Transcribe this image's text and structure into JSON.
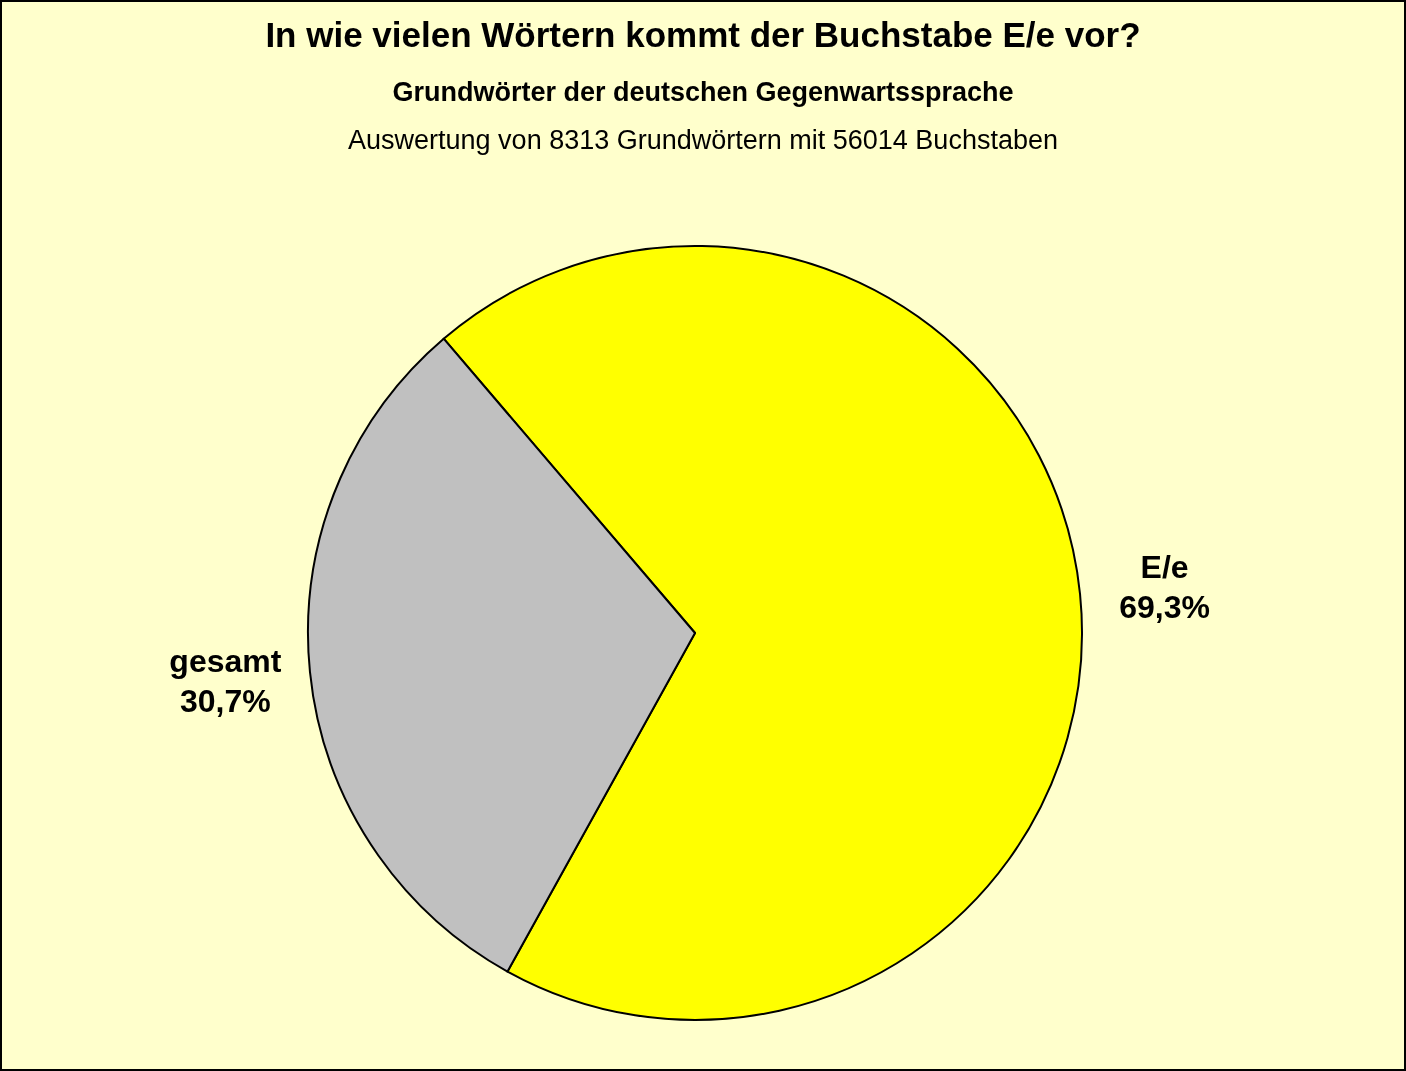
{
  "chart_data": {
    "type": "pie",
    "title": "In wie vielen Wörtern kommt der Buchstabe E/e vor?",
    "subtitle": "Grundwörter der deutschen Gegenwartssprache",
    "annotations": [
      "Auswertung von 8313 Grundwörtern mit 56014 Buchstaben"
    ],
    "categories": [
      "E/e",
      "gesamt"
    ],
    "values": [
      69.3,
      30.7
    ],
    "colors": [
      "#ffff00",
      "#c0c0c0"
    ],
    "value_labels": [
      "69,3%",
      "30,7%"
    ]
  }
}
